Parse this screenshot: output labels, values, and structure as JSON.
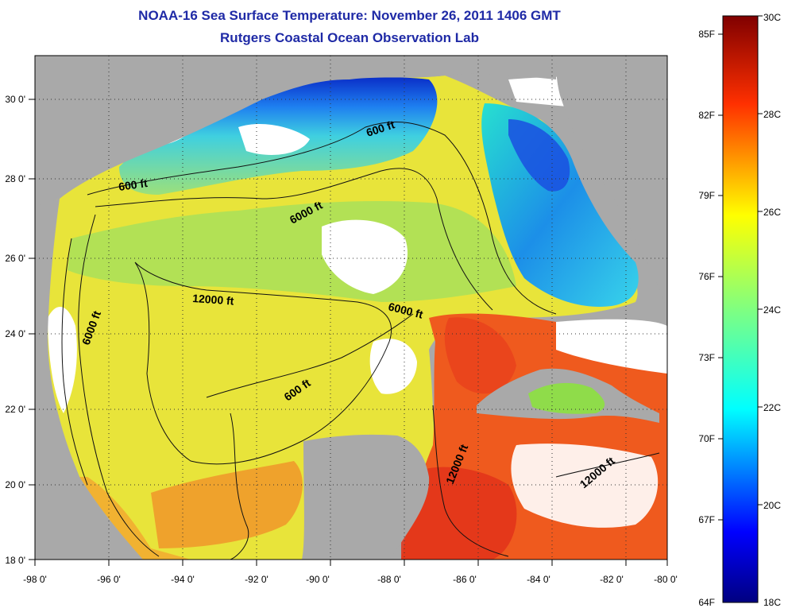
{
  "title": {
    "line1": "NOAA-16 Sea Surface Temperature:  November 26, 2011 1406 GMT",
    "line2": "Rutgers Coastal Ocean Observation Lab"
  },
  "map": {
    "lon_ticks": [
      "-98 0'",
      "-96 0'",
      "-94 0'",
      "-92 0'",
      "-90 0'",
      "-88 0'",
      "-86 0'",
      "-84 0'",
      "-82 0'",
      "-80 0'"
    ],
    "lat_ticks": [
      "30 0'",
      "28 0'",
      "26 0'",
      "24 0'",
      "22 0'",
      "20 0'",
      "18 0'"
    ],
    "contour_labels": [
      "600 ft",
      "600 ft",
      "6000 ft",
      "12000 ft",
      "6000 ft",
      "6000 ft",
      "600 ft",
      "12000 ft",
      "12000 ft"
    ],
    "colors": {
      "land": "#a9a9a9",
      "cloud": "#ffffff",
      "cold": "#0a2fc8",
      "warm": "#e2321a"
    }
  },
  "colorbar": {
    "fahrenheit": [
      "85F",
      "82F",
      "79F",
      "76F",
      "73F",
      "70F",
      "67F",
      "64F"
    ],
    "celsius": [
      "30C",
      "28C",
      "26C",
      "24C",
      "22C",
      "20C",
      "18C"
    ]
  }
}
